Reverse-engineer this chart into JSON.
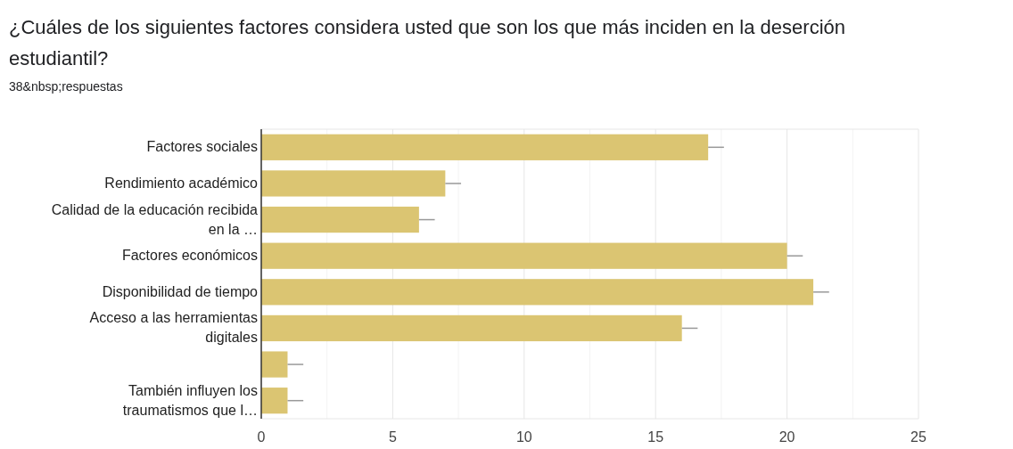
{
  "chart_data": {
    "type": "bar",
    "orientation": "horizontal",
    "title": "¿Cuáles de los siguientes factores considera usted que son los que más inciden en la deserción estudiantil?",
    "subtitle": "38&nbsp;respuestas",
    "categories": [
      "Factores sociales",
      "Rendimiento académico",
      "Calidad de la educación recibida en la …",
      "Factores económicos",
      "Disponibilidad de tiempo",
      "Acceso a las herramientas digitales",
      null,
      "También influyen los traumatismos que l…"
    ],
    "values": [
      17,
      7,
      6,
      20,
      21,
      16,
      1,
      1
    ],
    "errors": [
      [
        17,
        17.6
      ],
      [
        7,
        7.6
      ],
      [
        6,
        6.6
      ],
      [
        20,
        20.6
      ],
      [
        21,
        21.6
      ],
      [
        16,
        16.6
      ],
      [
        1,
        1.6
      ],
      [
        1,
        1.6
      ]
    ],
    "color": "#dbc572",
    "xlim": [
      0,
      25
    ],
    "xticks": [
      0,
      {
        "value": 2.5,
        "label": null
      },
      5,
      {
        "value": 7.5,
        "label": null
      },
      10,
      {
        "value": 12.5,
        "label": null
      },
      15,
      {
        "value": 17.5,
        "label": null
      },
      20,
      {
        "value": 22.5,
        "label": null
      },
      25
    ],
    "grid": true
  }
}
